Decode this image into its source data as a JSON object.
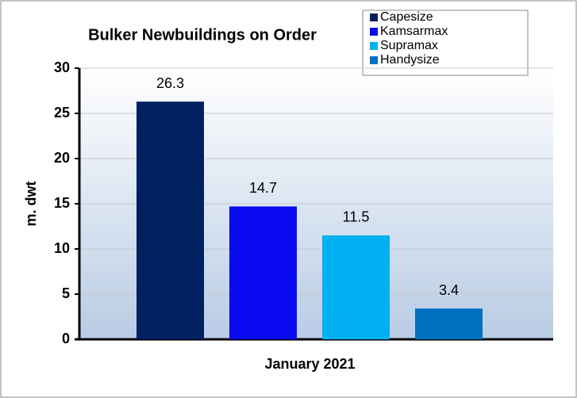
{
  "chart_data": {
    "type": "bar",
    "title": "Bulker Newbuildings on Order",
    "categories": [
      "January 2021"
    ],
    "series": [
      {
        "name": "Capesize",
        "color": "#002060",
        "values": [
          26.3
        ]
      },
      {
        "name": "Kamsarmax",
        "color": "#0a0af0",
        "values": [
          14.7
        ]
      },
      {
        "name": "Supramax",
        "color": "#00b0f0",
        "values": [
          11.5
        ]
      },
      {
        "name": "Handysize",
        "color": "#0070c0",
        "values": [
          3.4
        ]
      }
    ],
    "ylabel": "m. dwt",
    "ylim": [
      0,
      30
    ],
    "yticks": [
      0,
      5,
      10,
      15,
      20,
      25,
      30
    ],
    "grid": true,
    "legend": "top-right"
  }
}
